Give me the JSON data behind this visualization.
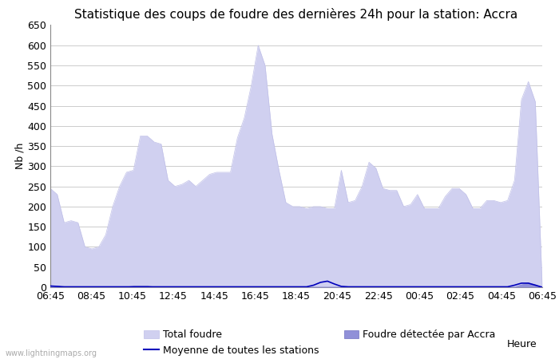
{
  "title": "Statistique des coups de foudre des dernières 24h pour la station: Accra",
  "ylabel": "Nb /h",
  "xlabel": "Heure",
  "watermark": "www.lightningmaps.org",
  "ylim": [
    0,
    650
  ],
  "yticks": [
    0,
    50,
    100,
    150,
    200,
    250,
    300,
    350,
    400,
    450,
    500,
    550,
    600,
    650
  ],
  "xtick_labels": [
    "06:45",
    "08:45",
    "10:45",
    "12:45",
    "14:45",
    "16:45",
    "18:45",
    "20:45",
    "22:45",
    "00:45",
    "02:45",
    "04:45",
    "06:45"
  ],
  "bg_color": "#ffffff",
  "grid_color": "#cccccc",
  "fill_total_color": "#d0d0f0",
  "fill_total_edge": "#c0c0e8",
  "fill_accra_color": "#9090d8",
  "fill_accra_edge": "#7070c0",
  "moyenne_color": "#0000bb",
  "title_fontsize": 11,
  "axis_fontsize": 9,
  "tick_fontsize": 9,
  "legend_fontsize": 9,
  "total_foudre": [
    245,
    230,
    160,
    165,
    160,
    100,
    95,
    100,
    130,
    200,
    250,
    285,
    290,
    375,
    375,
    360,
    355,
    265,
    250,
    255,
    265,
    250,
    265,
    280,
    285,
    285,
    285,
    370,
    420,
    500,
    600,
    550,
    380,
    290,
    210,
    200,
    200,
    195,
    200,
    200,
    195,
    195,
    290,
    210,
    215,
    250,
    310,
    295,
    245,
    240,
    240,
    200,
    205,
    230,
    195,
    195,
    195,
    225,
    245,
    245,
    230,
    195,
    195,
    215,
    215,
    210,
    215,
    265,
    465,
    510,
    460,
    0
  ],
  "accra_foudre": [
    5,
    4,
    2,
    2,
    2,
    2,
    2,
    2,
    2,
    2,
    2,
    2,
    5,
    5,
    5,
    2,
    2,
    2,
    2,
    2,
    2,
    2,
    2,
    2,
    2,
    2,
    2,
    2,
    2,
    2,
    2,
    2,
    2,
    2,
    2,
    2,
    2,
    2,
    2,
    2,
    2,
    2,
    2,
    2,
    2,
    2,
    2,
    2,
    2,
    2,
    2,
    2,
    2,
    2,
    2,
    2,
    2,
    2,
    2,
    2,
    2,
    2,
    2,
    2,
    2,
    2,
    2,
    2,
    8,
    12,
    8,
    0
  ],
  "moyenne": [
    3,
    2,
    1,
    1,
    1,
    1,
    1,
    1,
    1,
    1,
    1,
    1,
    1,
    1,
    1,
    1,
    1,
    1,
    1,
    1,
    1,
    1,
    1,
    1,
    1,
    1,
    1,
    1,
    1,
    1,
    1,
    1,
    1,
    1,
    1,
    1,
    1,
    1,
    5,
    12,
    15,
    8,
    2,
    1,
    1,
    1,
    1,
    1,
    1,
    1,
    1,
    1,
    1,
    1,
    1,
    1,
    1,
    1,
    1,
    1,
    1,
    1,
    1,
    1,
    1,
    1,
    1,
    5,
    10,
    10,
    5,
    0
  ]
}
